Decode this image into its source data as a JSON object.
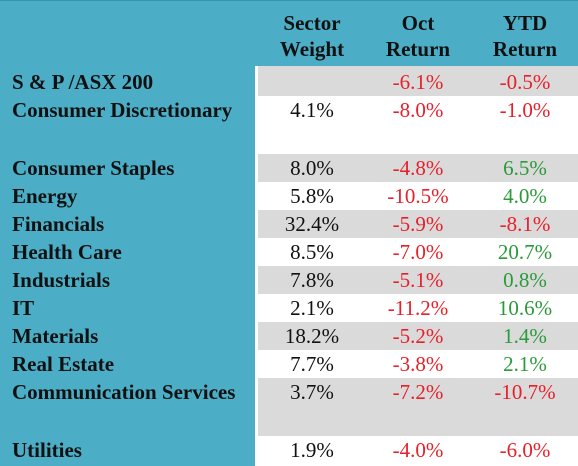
{
  "table": {
    "headers": {
      "weight": [
        "Sector",
        "Weight"
      ],
      "oct": [
        "Oct",
        "Return"
      ],
      "ytd": [
        "YTD",
        "Return"
      ]
    },
    "rows": [
      {
        "sector": "S & P /ASX 200",
        "weight": "",
        "oct": "-6.1%",
        "ytd": "-0.5%",
        "oct_sign": "neg",
        "ytd_sign": "neg"
      },
      {
        "sector": "Consumer Discretionary",
        "weight": "4.1%",
        "oct": "-8.0%",
        "ytd": "-1.0%",
        "oct_sign": "neg",
        "ytd_sign": "neg"
      },
      {
        "sector": "Consumer Staples",
        "weight": "8.0%",
        "oct": "-4.8%",
        "ytd": "6.5%",
        "oct_sign": "neg",
        "ytd_sign": "pos"
      },
      {
        "sector": "Energy",
        "weight": "5.8%",
        "oct": "-10.5%",
        "ytd": "4.0%",
        "oct_sign": "neg",
        "ytd_sign": "pos"
      },
      {
        "sector": "Financials",
        "weight": "32.4%",
        "oct": "-5.9%",
        "ytd": "-8.1%",
        "oct_sign": "neg",
        "ytd_sign": "neg"
      },
      {
        "sector": "Health Care",
        "weight": "8.5%",
        "oct": "-7.0%",
        "ytd": "20.7%",
        "oct_sign": "neg",
        "ytd_sign": "pos"
      },
      {
        "sector": "Industrials",
        "weight": "7.8%",
        "oct": "-5.1%",
        "ytd": "0.8%",
        "oct_sign": "neg",
        "ytd_sign": "pos"
      },
      {
        "sector": "IT",
        "weight": "2.1%",
        "oct": "-11.2%",
        "ytd": "10.6%",
        "oct_sign": "neg",
        "ytd_sign": "pos"
      },
      {
        "sector": "Materials",
        "weight": "18.2%",
        "oct": "-5.2%",
        "ytd": "1.4%",
        "oct_sign": "neg",
        "ytd_sign": "pos"
      },
      {
        "sector": "Real Estate",
        "weight": "7.7%",
        "oct": "-3.8%",
        "ytd": "2.1%",
        "oct_sign": "neg",
        "ytd_sign": "pos"
      },
      {
        "sector": "Communication Services",
        "weight": "3.7%",
        "oct": "-7.2%",
        "ytd": "-10.7%",
        "oct_sign": "neg",
        "ytd_sign": "neg"
      },
      {
        "sector": "Utilities",
        "weight": "1.9%",
        "oct": "-4.0%",
        "ytd": "-6.0%",
        "oct_sign": "neg",
        "ytd_sign": "neg"
      }
    ]
  },
  "colors": {
    "header_bg": "#4baec6",
    "shaded_row": "#dadada",
    "negative": "#e8202a",
    "positive": "#2a9a3a"
  }
}
